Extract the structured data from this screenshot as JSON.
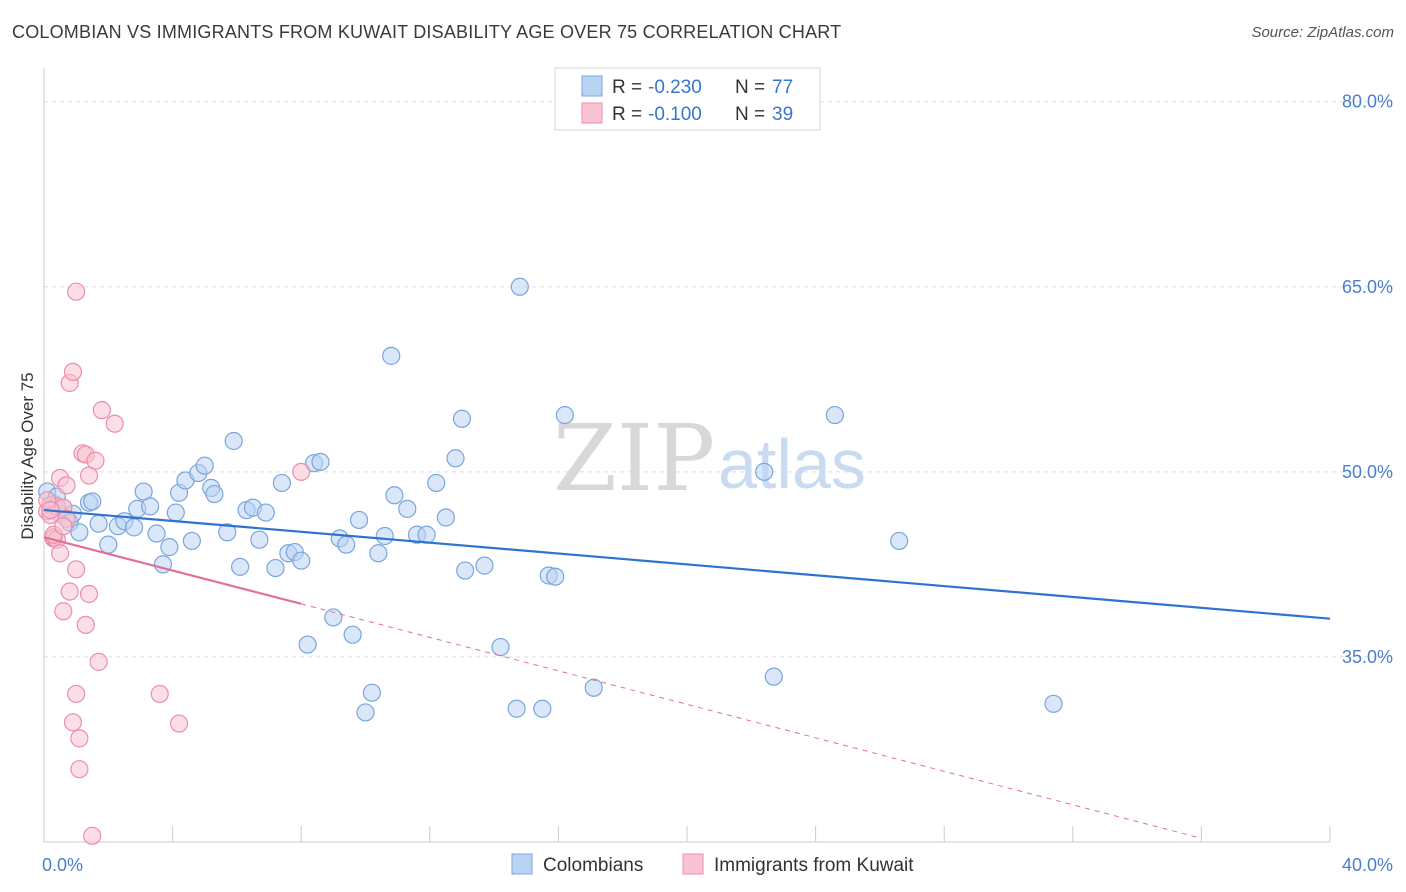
{
  "header": {
    "title": "COLOMBIAN VS IMMIGRANTS FROM KUWAIT DISABILITY AGE OVER 75 CORRELATION CHART",
    "source": "Source: ZipAtlas.com"
  },
  "watermark": {
    "zip": "ZIP",
    "atlas": "atlas"
  },
  "colors": {
    "blue_fill": "#b9d3f3",
    "blue_stroke": "#7aa5dc",
    "blue_line": "#2f73d0",
    "pink_fill": "#f8c3d2",
    "pink_stroke": "#ec8eaa",
    "pink_line": "#e0709a"
  },
  "legend": {
    "rows": [
      {
        "r_label": "R =",
        "r_value": "-0.230",
        "n_label": "N =",
        "n_value": "77"
      },
      {
        "r_label": "R =",
        "r_value": "-0.100",
        "n_label": "N =",
        "n_value": "39"
      }
    ]
  },
  "chart_data": {
    "type": "scatter",
    "ylabel": "Disability Age Over 75",
    "xlim": [
      0,
      40
    ],
    "ylim": [
      20,
      82
    ],
    "x_tick_labels": [
      "0.0%",
      "40.0%"
    ],
    "y_ticks": [
      35,
      50,
      65,
      80
    ],
    "y_tick_labels": [
      "35.0%",
      "50.0%",
      "65.0%",
      "80.0%"
    ],
    "grid": true,
    "legend_position": "top-center",
    "series": [
      {
        "name": "Colombians",
        "color": "#b9d3f3",
        "trend": {
          "x": [
            0,
            40
          ],
          "y": [
            46.9,
            38.1
          ]
        },
        "points": [
          [
            0.1,
            48.4
          ],
          [
            0.3,
            47.4
          ],
          [
            0.4,
            48.0
          ],
          [
            0.5,
            46.6
          ],
          [
            0.6,
            47.1
          ],
          [
            0.8,
            45.9
          ],
          [
            0.9,
            46.6
          ],
          [
            1.1,
            45.1
          ],
          [
            1.4,
            47.5
          ],
          [
            1.5,
            47.6
          ],
          [
            1.7,
            45.8
          ],
          [
            2.0,
            44.1
          ],
          [
            2.3,
            45.6
          ],
          [
            2.5,
            46.0
          ],
          [
            2.8,
            45.5
          ],
          [
            2.9,
            47.0
          ],
          [
            3.1,
            48.4
          ],
          [
            3.3,
            47.2
          ],
          [
            3.5,
            45.0
          ],
          [
            3.7,
            42.5
          ],
          [
            3.9,
            43.9
          ],
          [
            4.1,
            46.7
          ],
          [
            4.2,
            48.3
          ],
          [
            4.4,
            49.3
          ],
          [
            4.6,
            44.4
          ],
          [
            4.8,
            49.9
          ],
          [
            5.0,
            50.5
          ],
          [
            5.2,
            48.7
          ],
          [
            5.3,
            48.2
          ],
          [
            5.7,
            45.1
          ],
          [
            5.9,
            52.5
          ],
          [
            6.1,
            42.3
          ],
          [
            6.3,
            46.9
          ],
          [
            6.5,
            47.1
          ],
          [
            6.7,
            44.5
          ],
          [
            6.9,
            46.7
          ],
          [
            7.2,
            42.2
          ],
          [
            7.4,
            49.1
          ],
          [
            7.6,
            43.4
          ],
          [
            7.8,
            43.5
          ],
          [
            8.0,
            42.8
          ],
          [
            8.2,
            36.0
          ],
          [
            8.4,
            50.7
          ],
          [
            8.6,
            50.8
          ],
          [
            9.0,
            38.2
          ],
          [
            9.2,
            44.6
          ],
          [
            9.4,
            44.1
          ],
          [
            9.6,
            36.8
          ],
          [
            9.8,
            46.1
          ],
          [
            10.0,
            30.5
          ],
          [
            10.2,
            32.1
          ],
          [
            10.4,
            43.4
          ],
          [
            10.6,
            44.8
          ],
          [
            10.8,
            59.4
          ],
          [
            10.9,
            48.1
          ],
          [
            11.3,
            47.0
          ],
          [
            11.6,
            44.9
          ],
          [
            11.9,
            44.9
          ],
          [
            12.2,
            49.1
          ],
          [
            12.5,
            46.3
          ],
          [
            12.8,
            51.1
          ],
          [
            13.0,
            54.3
          ],
          [
            13.1,
            42.0
          ],
          [
            13.7,
            42.4
          ],
          [
            14.2,
            35.8
          ],
          [
            14.7,
            30.8
          ],
          [
            14.8,
            65.0
          ],
          [
            15.5,
            30.8
          ],
          [
            15.7,
            41.6
          ],
          [
            15.9,
            41.5
          ],
          [
            16.2,
            54.6
          ],
          [
            17.1,
            32.5
          ],
          [
            22.4,
            50.0
          ],
          [
            22.7,
            33.4
          ],
          [
            24.6,
            54.6
          ],
          [
            26.6,
            44.4
          ],
          [
            31.4,
            31.2
          ]
        ]
      },
      {
        "name": "Immigrants from Kuwait",
        "color": "#f8c3d2",
        "trend": {
          "x": [
            0,
            8
          ],
          "y": [
            44.7,
            39.3
          ],
          "dashed_to": {
            "x": 36,
            "y": 20.3
          }
        },
        "points": [
          [
            0.1,
            46.8
          ],
          [
            0.2,
            47.3
          ],
          [
            0.2,
            46.5
          ],
          [
            0.3,
            44.6
          ],
          [
            0.3,
            44.7
          ],
          [
            0.4,
            44.5
          ],
          [
            0.4,
            47.2
          ],
          [
            0.5,
            43.4
          ],
          [
            0.5,
            49.5
          ],
          [
            0.6,
            38.7
          ],
          [
            0.6,
            47.1
          ],
          [
            0.7,
            46.2
          ],
          [
            0.7,
            48.9
          ],
          [
            0.8,
            57.2
          ],
          [
            0.8,
            40.3
          ],
          [
            0.9,
            58.1
          ],
          [
            0.9,
            29.7
          ],
          [
            1.0,
            64.6
          ],
          [
            1.0,
            32.0
          ],
          [
            1.0,
            42.1
          ],
          [
            1.1,
            28.4
          ],
          [
            1.1,
            25.9
          ],
          [
            1.2,
            51.5
          ],
          [
            1.3,
            51.4
          ],
          [
            1.3,
            37.6
          ],
          [
            1.4,
            40.1
          ],
          [
            1.4,
            49.7
          ],
          [
            1.5,
            20.5
          ],
          [
            1.6,
            50.9
          ],
          [
            1.7,
            34.6
          ],
          [
            1.8,
            55.0
          ],
          [
            2.2,
            53.9
          ],
          [
            3.6,
            32.0
          ],
          [
            4.2,
            29.6
          ],
          [
            8.0,
            50.0
          ],
          [
            0.1,
            47.7
          ],
          [
            0.2,
            46.9
          ],
          [
            0.3,
            44.9
          ],
          [
            0.6,
            45.6
          ]
        ]
      }
    ]
  }
}
